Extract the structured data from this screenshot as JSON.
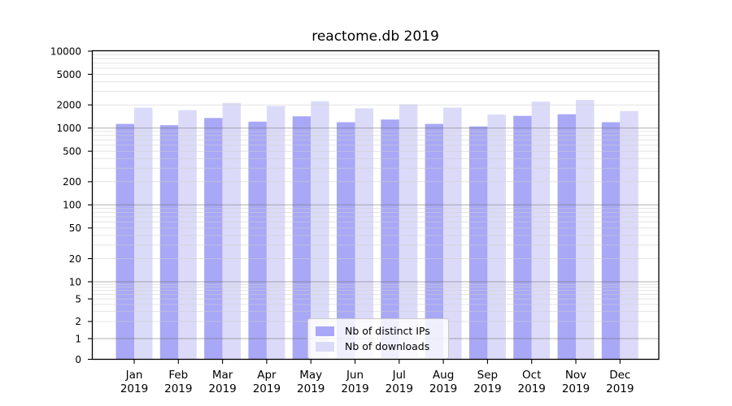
{
  "chart_data": {
    "type": "bar",
    "title": "reactome.db 2019",
    "y_scale": "log-with-zero",
    "y_ticks": [
      0,
      1,
      2,
      5,
      10,
      20,
      50,
      100,
      200,
      500,
      1000,
      2000,
      5000,
      10000
    ],
    "ylim": [
      0,
      10000
    ],
    "grid": "on",
    "legend_position": "lower center",
    "x_categories": [
      "Jan",
      "Feb",
      "Mar",
      "Apr",
      "May",
      "Jun",
      "Jul",
      "Aug",
      "Sep",
      "Oct",
      "Nov",
      "Dec"
    ],
    "x_year_label": "2019",
    "series": [
      {
        "name": "Nb of distinct IPs",
        "color": "#a8a8f6",
        "values": [
          1130,
          1090,
          1350,
          1210,
          1420,
          1190,
          1290,
          1130,
          1050,
          1440,
          1510,
          1190
        ]
      },
      {
        "name": "Nb of downloads",
        "color": "#dbdbf9",
        "values": [
          1840,
          1710,
          2120,
          1930,
          2230,
          1810,
          2040,
          1840,
          1500,
          2210,
          2330,
          1660
        ]
      }
    ],
    "colors": {
      "major_grid": "#b2b2b2",
      "minor_grid": "#e7e7e7",
      "spine": "#000000",
      "text": "#000000",
      "background": "#ffffff"
    }
  }
}
